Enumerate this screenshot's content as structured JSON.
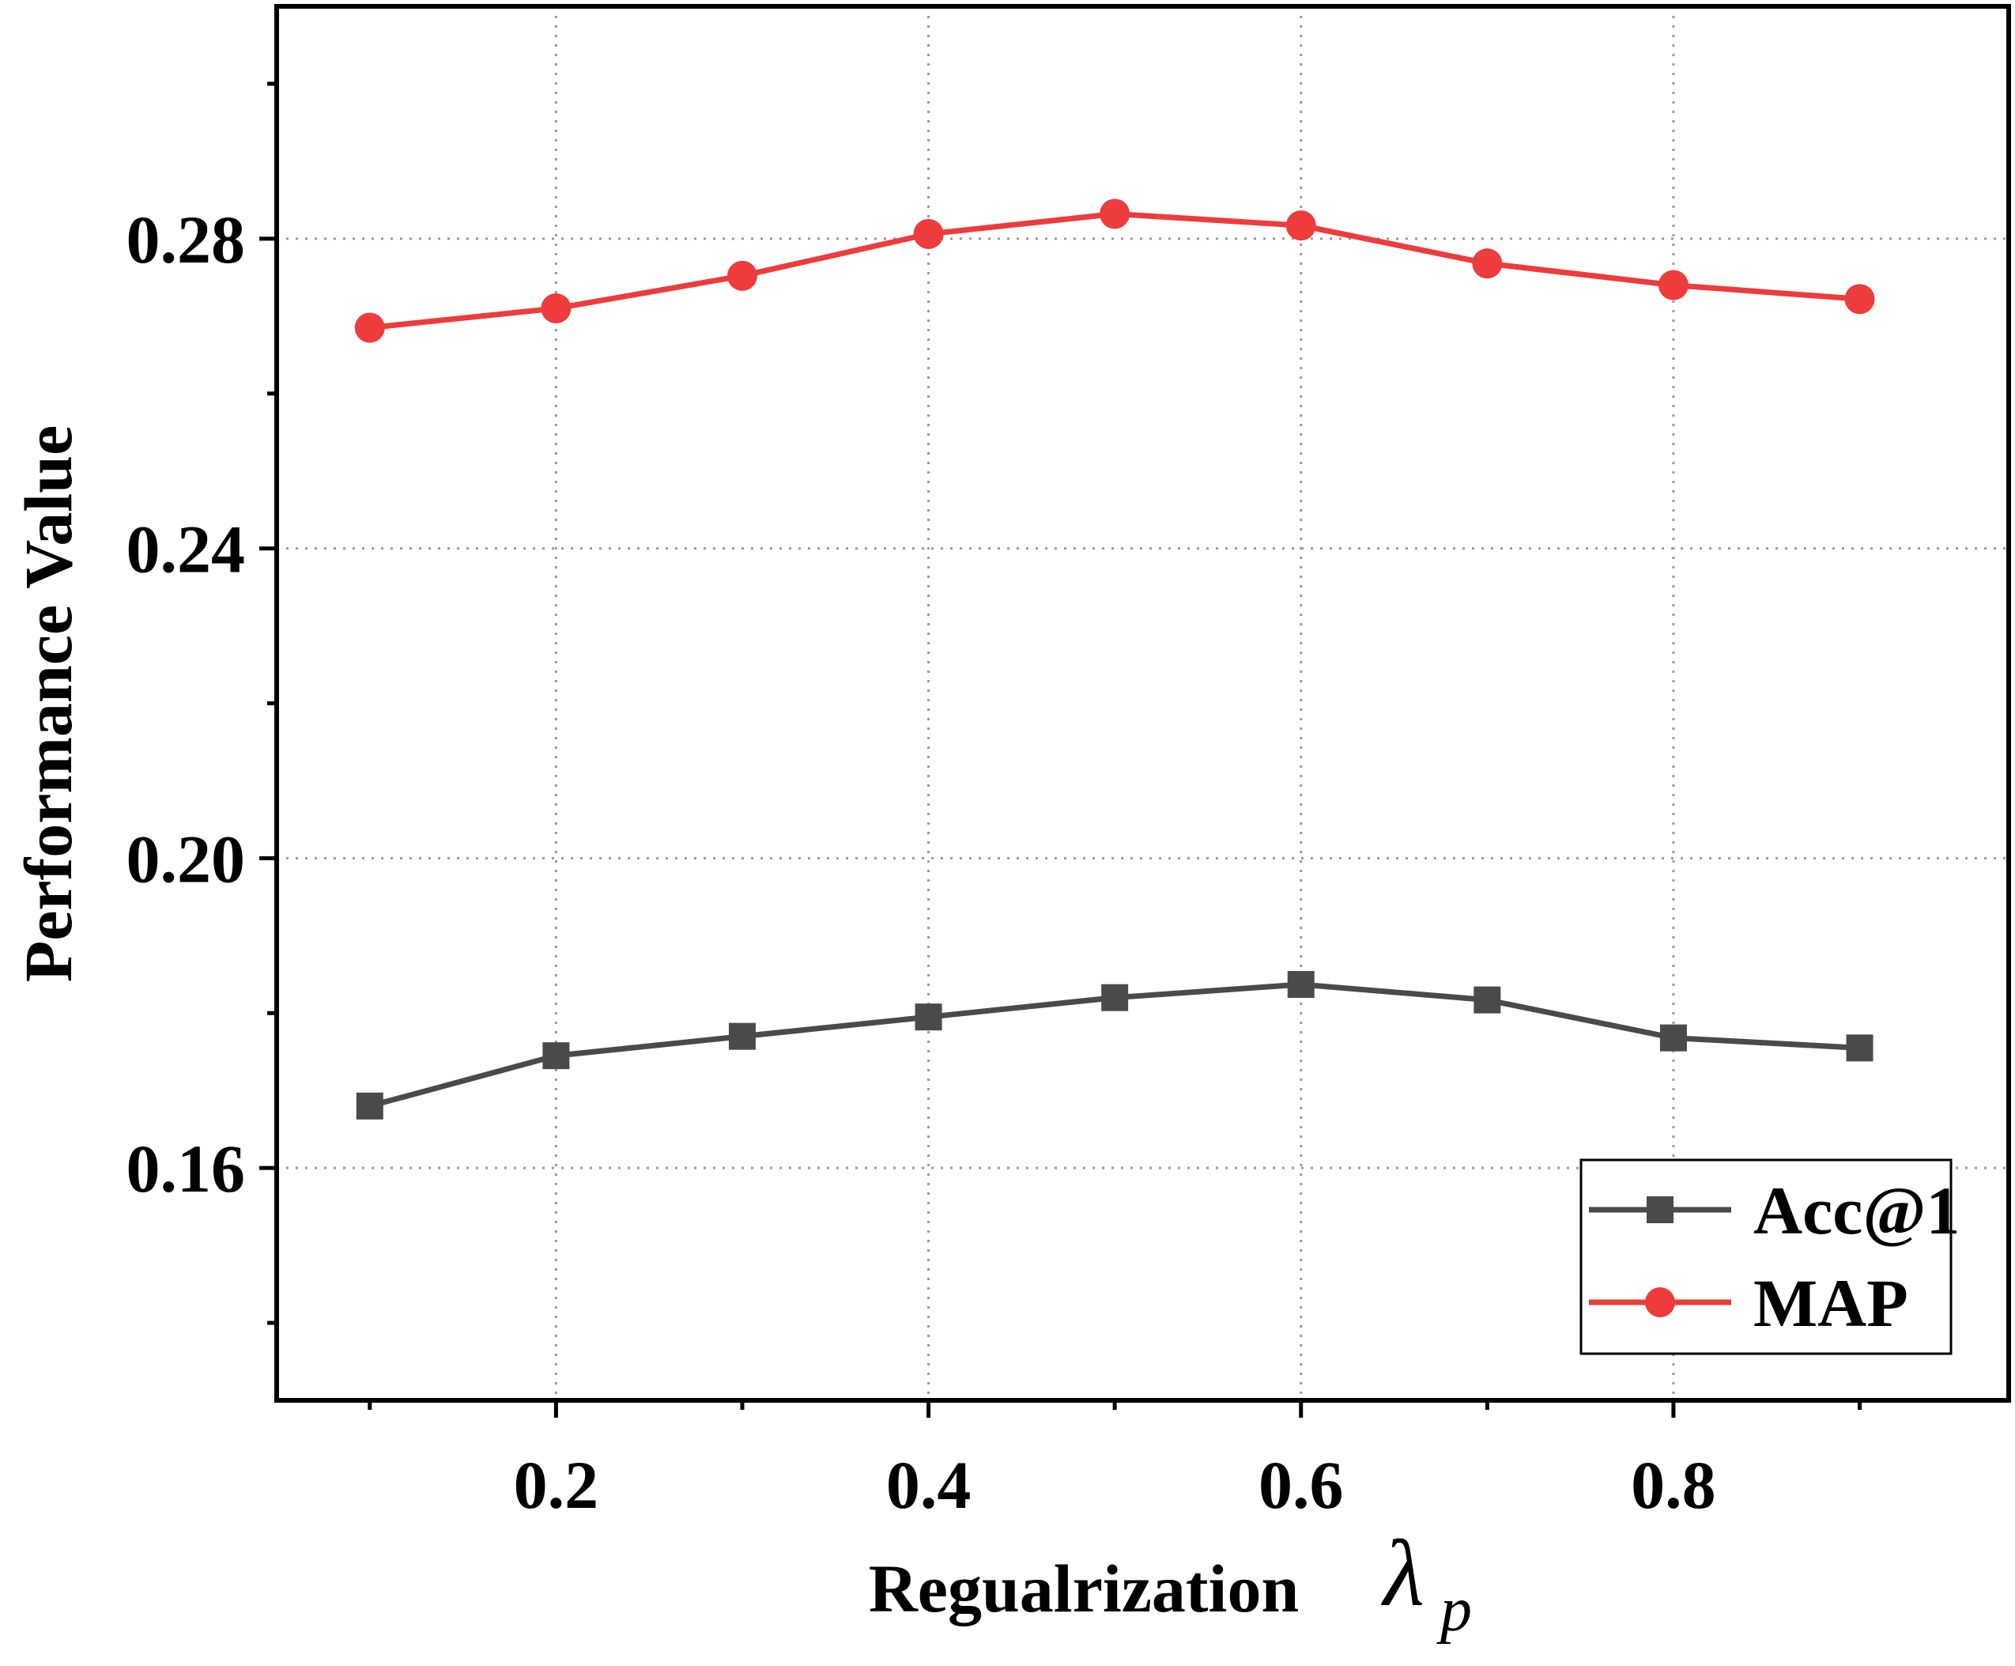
{
  "chart_data": {
    "type": "line",
    "xlabel": "Regualrization",
    "xlabel_symbol": "λ",
    "xlabel_subscript": "p",
    "ylabel": "Performance Value",
    "x": [
      0.1,
      0.2,
      0.3,
      0.4,
      0.5,
      0.6,
      0.7,
      0.8,
      0.9
    ],
    "xlim": [
      0.05,
      0.98
    ],
    "ylim": [
      0.13,
      0.31
    ],
    "xticks": [
      0.2,
      0.4,
      0.6,
      0.8
    ],
    "xtick_labels": [
      "0.2",
      "0.4",
      "0.6",
      "0.8"
    ],
    "yticks": [
      0.16,
      0.2,
      0.24,
      0.28
    ],
    "ytick_labels": [
      "0.16",
      "0.20",
      "0.24",
      "0.28"
    ],
    "grid": true,
    "legend_position": "bottom-right",
    "series": [
      {
        "name": "Acc@1",
        "color": "#4a4a4a",
        "marker": "square",
        "values": [
          0.168,
          0.1745,
          0.177,
          0.1795,
          0.182,
          0.1837,
          0.1817,
          0.1768,
          0.1755
        ]
      },
      {
        "name": "MAP",
        "color": "#ee3b3b",
        "marker": "circle",
        "values": [
          0.2685,
          0.271,
          0.2752,
          0.2806,
          0.2832,
          0.2817,
          0.2768,
          0.274,
          0.2722
        ]
      }
    ]
  }
}
